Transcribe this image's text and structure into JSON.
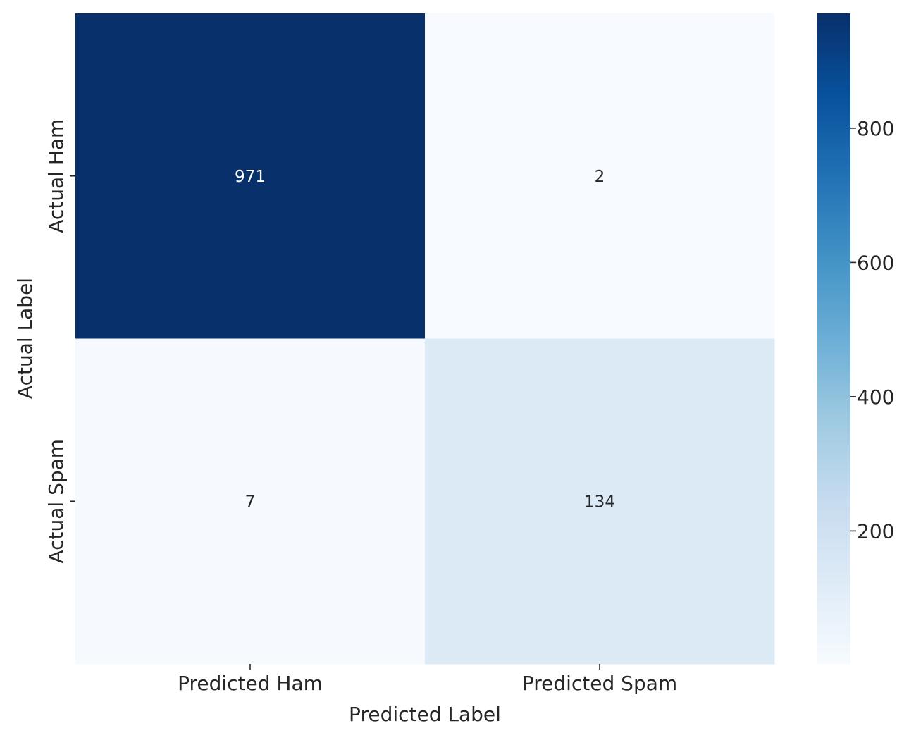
{
  "chart_data": {
    "type": "heatmap",
    "title": "",
    "xlabel": "Predicted Label",
    "ylabel": "Actual Label",
    "x_categories": [
      "Predicted Ham",
      "Predicted Spam"
    ],
    "y_categories": [
      "Actual Ham",
      "Actual Spam"
    ],
    "values": [
      [
        971,
        2
      ],
      [
        7,
        134
      ]
    ],
    "colormap": "Blues",
    "colorbar": {
      "min": 2,
      "max": 971,
      "ticks": [
        200,
        400,
        600,
        800
      ],
      "tick_labels": [
        "200",
        "400",
        "600",
        "800"
      ]
    },
    "annotation_colors": {
      "dark_cell": "#ffffff",
      "light_cell": "#262626"
    },
    "grid": false,
    "legend": "colorbar-right"
  }
}
